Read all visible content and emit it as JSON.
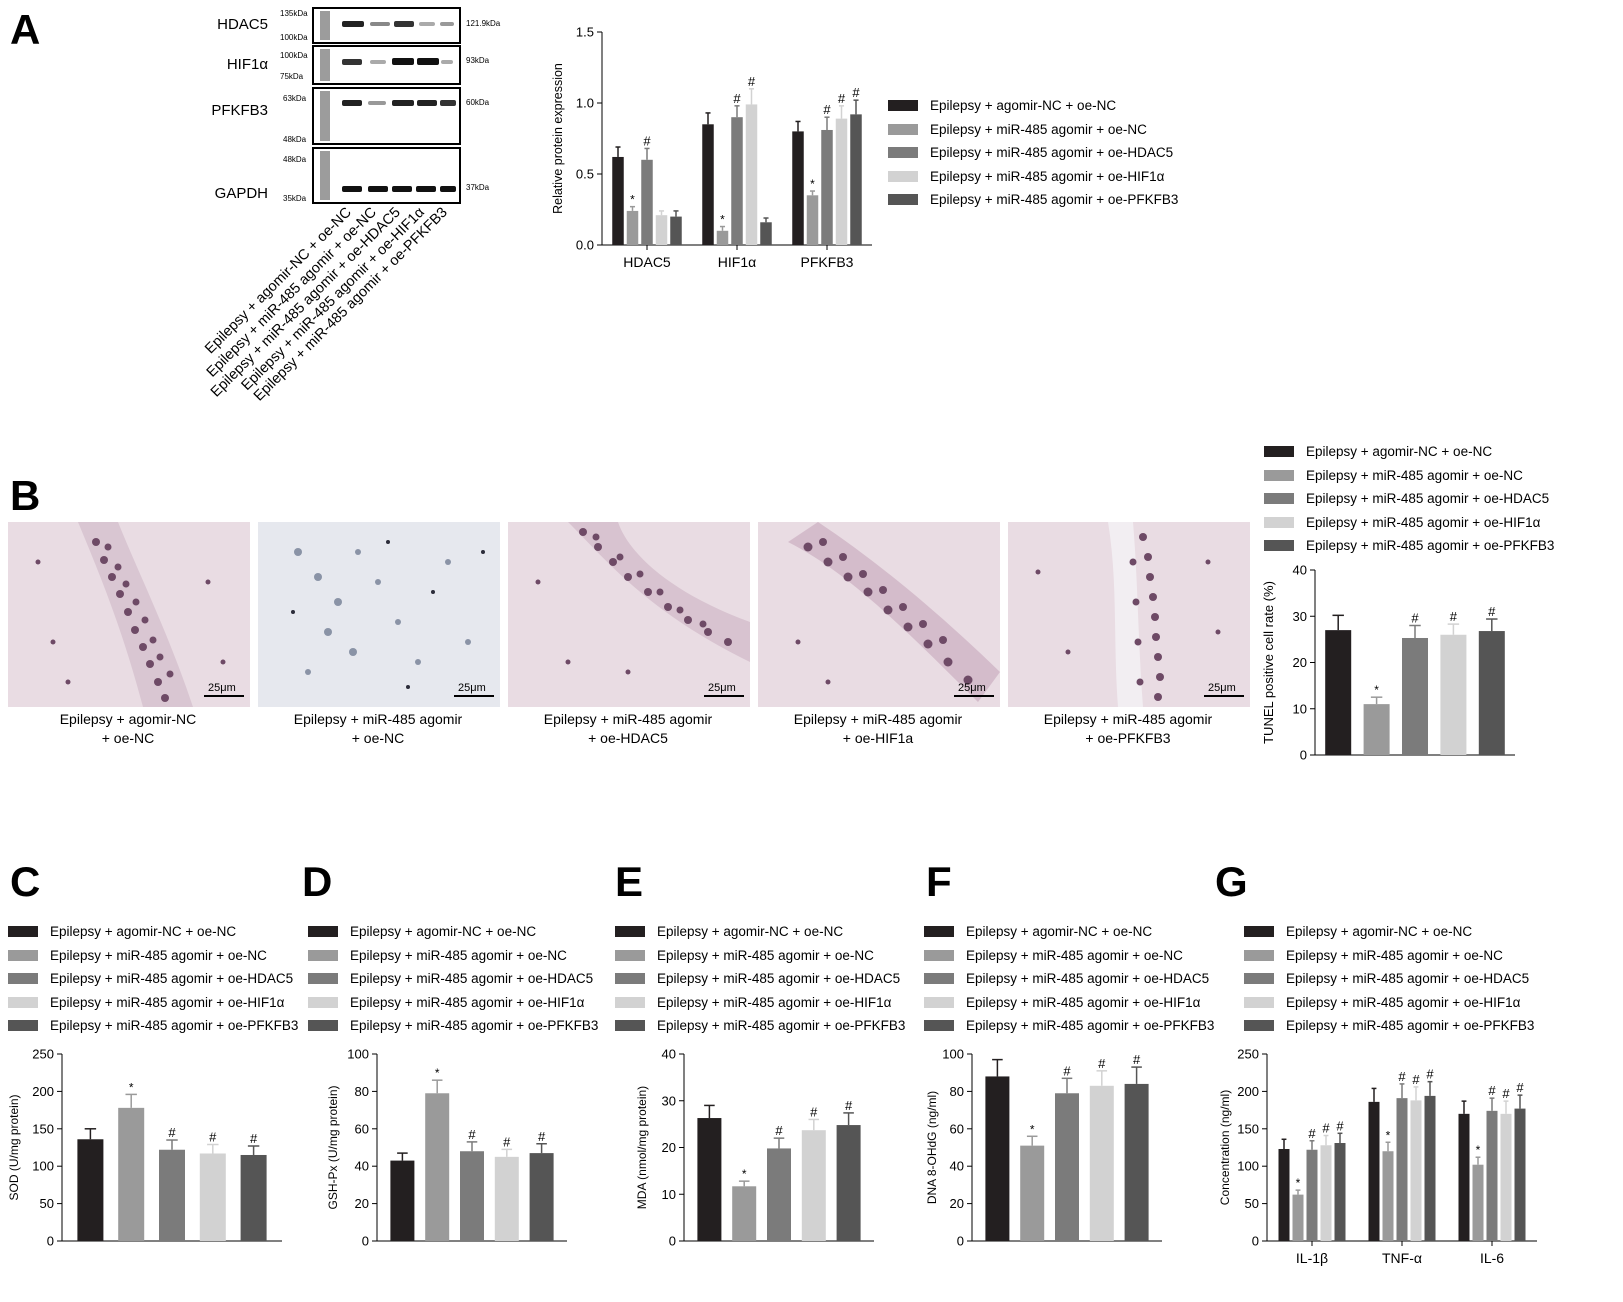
{
  "colors": {
    "s1": "#231f20",
    "s2": "#9a9a9a",
    "s3": "#7b7b7b",
    "s4": "#d2d2d2",
    "s5": "#555555"
  },
  "groups": [
    "Epilepsy + agomir-NC + oe-NC",
    "Epilepsy + miR-485 agomir + oe-NC",
    "Epilepsy + miR-485 agomir + oe-HDAC5",
    "Epilepsy + miR-485 agomir + oe-HIF1α",
    "Epilepsy + miR-485 agomir + oe-PFKFB3"
  ],
  "panels": {
    "A": "A",
    "B": "B",
    "C": "C",
    "D": "D",
    "E": "E",
    "F": "F",
    "G": "G"
  },
  "western_blot": {
    "bands": [
      {
        "name": "HDAC5",
        "marker_top": "135kDa",
        "marker_bottom": "100kDa",
        "size": "121.9kDa"
      },
      {
        "name": "HIF1α",
        "marker_top": "100kDa",
        "marker_bottom": "75kDa",
        "size": "93kDa"
      },
      {
        "name": "PFKFB3",
        "marker_top": "63kDa",
        "marker_bottom": "48kDa",
        "size": "60kDa"
      },
      {
        "name": "GAPDH",
        "marker_top": "48kDa",
        "marker_bottom": "35kDa",
        "size": "37kDa"
      }
    ],
    "lane_labels": [
      "Epilepsy + agomir-NC + oe-NC",
      "Epilepsy + miR-485 agomir + oe-NC",
      "Epilepsy + miR-485 agomir + oe-HDAC5",
      "Epilepsy + miR-485 agomir + oe-HIF1α",
      "Epilepsy + miR-485 agomir + oe-PFKFB3"
    ]
  },
  "micrographs": {
    "scale": "25μm",
    "captions": [
      {
        "line1": "Epilepsy + agomir-NC",
        "line2": "+ oe-NC"
      },
      {
        "line1": "Epilepsy + miR-485 agomir",
        "line2": "+ oe-NC"
      },
      {
        "line1": "Epilepsy + miR-485 agomir",
        "line2": "+ oe-HDAC5"
      },
      {
        "line1": "Epilepsy + miR-485 agomir",
        "line2": "+ oe-HIF1a"
      },
      {
        "line1": "Epilepsy + miR-485 agomir",
        "line2": "+ oe-PFKFB3"
      }
    ]
  },
  "chart_data": [
    {
      "id": "A",
      "type": "bar",
      "categories": [
        "HDAC5",
        "HIF1α",
        "PFKFB3"
      ],
      "ylabel": "Relative protein expression",
      "ylim": [
        0,
        1.5
      ],
      "yticks": [
        "0.0",
        "0.5",
        "1.0",
        "1.5"
      ],
      "series": [
        {
          "name": "Epilepsy + agomir-NC + oe-NC",
          "values": [
            0.62,
            0.85,
            0.8
          ],
          "err": [
            0.07,
            0.08,
            0.07
          ],
          "marks": [
            "",
            "",
            ""
          ]
        },
        {
          "name": "Epilepsy + miR-485 agomir + oe-NC",
          "values": [
            0.24,
            0.1,
            0.35
          ],
          "err": [
            0.03,
            0.03,
            0.03
          ],
          "marks": [
            "*",
            "*",
            "*"
          ]
        },
        {
          "name": "Epilepsy + miR-485 agomir + oe-HDAC5",
          "values": [
            0.6,
            0.9,
            0.81
          ],
          "err": [
            0.08,
            0.08,
            0.09
          ],
          "marks": [
            "#",
            "#",
            "#"
          ]
        },
        {
          "name": "Epilepsy + miR-485 agomir + oe-HIF1α",
          "values": [
            0.21,
            0.99,
            0.89
          ],
          "err": [
            0.03,
            0.11,
            0.09
          ],
          "marks": [
            "",
            "#",
            "#"
          ]
        },
        {
          "name": "Epilepsy + miR-485 agomir + oe-PFKFB3",
          "values": [
            0.2,
            0.16,
            0.92
          ],
          "err": [
            0.04,
            0.03,
            0.1
          ],
          "marks": [
            "",
            "",
            "#"
          ]
        }
      ]
    },
    {
      "id": "B",
      "type": "bar",
      "categories": [
        "Epilepsy + agomir-NC + oe-NC",
        "Epilepsy + miR-485 agomir + oe-NC",
        "Epilepsy + miR-485 agomir + oe-HDAC5",
        "Epilepsy + miR-485 agomir + oe-HIF1α",
        "Epilepsy + miR-485 agomir + oe-PFKFB3"
      ],
      "ylabel": "TUNEL positive cell rate (%)",
      "ylim": [
        0,
        40
      ],
      "yticks": [
        "0",
        "10",
        "20",
        "30",
        "40"
      ],
      "values": [
        27.0,
        11.0,
        25.3,
        26.0,
        26.8
      ],
      "err": [
        3.2,
        1.5,
        2.7,
        2.3,
        2.6
      ],
      "marks": [
        "",
        "*",
        "#",
        "#",
        "#"
      ]
    },
    {
      "id": "C",
      "type": "bar",
      "categories": [
        "Epilepsy + agomir-NC + oe-NC",
        "Epilepsy + miR-485 agomir + oe-NC",
        "Epilepsy + miR-485 agomir + oe-HDAC5",
        "Epilepsy + miR-485 agomir + oe-HIF1α",
        "Epilepsy + miR-485 agomir + oe-PFKFB3"
      ],
      "ylabel": "SOD (U/mg protein)",
      "ylim": [
        0,
        250
      ],
      "yticks": [
        "0",
        "50",
        "100",
        "150",
        "200",
        "250"
      ],
      "values": [
        136,
        178,
        122,
        117,
        115
      ],
      "err": [
        14,
        18,
        13,
        12,
        12
      ],
      "marks": [
        "",
        "*",
        "#",
        "#",
        "#"
      ]
    },
    {
      "id": "D",
      "type": "bar",
      "categories": [
        "Epilepsy + agomir-NC + oe-NC",
        "Epilepsy + miR-485 agomir + oe-NC",
        "Epilepsy + miR-485 agomir + oe-HDAC5",
        "Epilepsy + miR-485 agomir + oe-HIF1α",
        "Epilepsy + miR-485 agomir + oe-PFKFB3"
      ],
      "ylabel": "GSH-Px (U/mg protein)",
      "ylim": [
        0,
        100
      ],
      "yticks": [
        "0",
        "20",
        "40",
        "60",
        "80",
        "100"
      ],
      "values": [
        43,
        79,
        48,
        45,
        47
      ],
      "err": [
        4,
        7,
        5,
        4,
        5
      ],
      "marks": [
        "",
        "*",
        "#",
        "#",
        "#"
      ]
    },
    {
      "id": "E",
      "type": "bar",
      "categories": [
        "Epilepsy + agomir-NC + oe-NC",
        "Epilepsy + miR-485 agomir + oe-NC",
        "Epilepsy + miR-485 agomir + oe-HDAC5",
        "Epilepsy + miR-485 agomir + oe-HIF1α",
        "Epilepsy + miR-485 agomir + oe-PFKFB3"
      ],
      "ylabel": "MDA (nmol/mg  protein)",
      "ylim": [
        0,
        40
      ],
      "yticks": [
        "0",
        "10",
        "20",
        "30",
        "40"
      ],
      "values": [
        26.3,
        11.7,
        19.8,
        23.7,
        24.8
      ],
      "err": [
        2.7,
        1.1,
        2.2,
        2.3,
        2.6
      ],
      "marks": [
        "",
        "*",
        "#",
        "#",
        "#"
      ]
    },
    {
      "id": "F",
      "type": "bar",
      "categories": [
        "Epilepsy + agomir-NC + oe-NC",
        "Epilepsy + miR-485 agomir + oe-NC",
        "Epilepsy + miR-485 agomir + oe-HDAC5",
        "Epilepsy + miR-485 agomir + oe-HIF1α",
        "Epilepsy + miR-485 agomir + oe-PFKFB3"
      ],
      "ylabel": "DNA 8-OHdG (ng/ml)",
      "ylim": [
        0,
        100
      ],
      "yticks": [
        "0",
        "20",
        "40",
        "60",
        "80",
        "100"
      ],
      "values": [
        88,
        51,
        79,
        83,
        84
      ],
      "err": [
        9,
        5,
        8,
        8,
        9
      ],
      "marks": [
        "",
        "*",
        "#",
        "#",
        "#"
      ]
    },
    {
      "id": "G",
      "type": "bar",
      "categories": [
        "IL-1β",
        "TNF-α",
        "IL-6"
      ],
      "ylabel": "Concentration (ng/ml)",
      "ylim": [
        0,
        250
      ],
      "yticks": [
        "0",
        "50",
        "100",
        "150",
        "200",
        "250"
      ],
      "series": [
        {
          "name": "Epilepsy + agomir-NC + oe-NC",
          "values": [
            123,
            186,
            170
          ],
          "err": [
            13,
            18,
            17
          ],
          "marks": [
            "",
            "",
            ""
          ]
        },
        {
          "name": "Epilepsy + miR-485 agomir + oe-NC",
          "values": [
            62,
            120,
            102
          ],
          "err": [
            6,
            12,
            10
          ],
          "marks": [
            "*",
            "*",
            "*"
          ]
        },
        {
          "name": "Epilepsy + miR-485 agomir + oe-HDAC5",
          "values": [
            122,
            191,
            174
          ],
          "err": [
            12,
            19,
            17
          ],
          "marks": [
            "#",
            "#",
            "#"
          ]
        },
        {
          "name": "Epilepsy + miR-485 agomir + oe-HIF1α",
          "values": [
            128,
            188,
            170
          ],
          "err": [
            13,
            18,
            17
          ],
          "marks": [
            "#",
            "#",
            "#"
          ]
        },
        {
          "name": "Epilepsy + miR-485 agomir + oe-PFKFB3",
          "values": [
            131,
            194,
            177
          ],
          "err": [
            13,
            19,
            18
          ],
          "marks": [
            "#",
            "#",
            "#"
          ]
        }
      ]
    }
  ]
}
